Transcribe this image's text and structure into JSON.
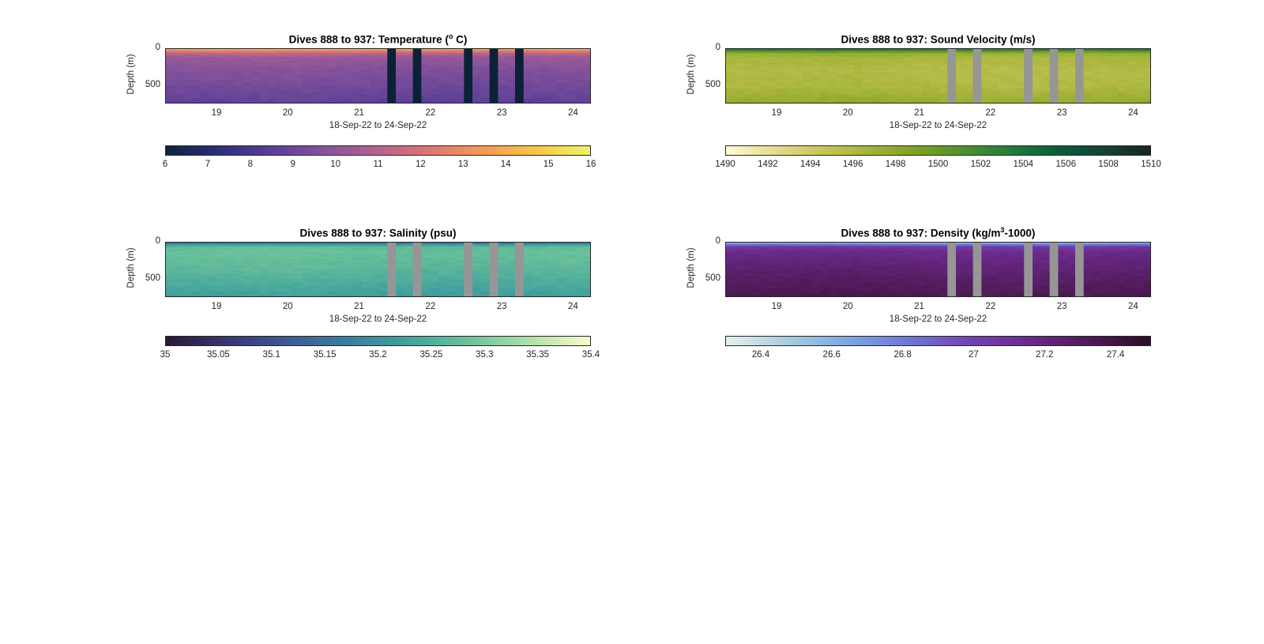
{
  "figure": {
    "panels": [
      {
        "title": "Dives 888 to 937: Temperature (",
        "title_sup": "o",
        "title_after": " C)",
        "ylabel": "Depth (m)",
        "xlabel": "18-Sep-22 to 24-Sep-22",
        "yticks": [
          "0",
          "500"
        ],
        "xticks": [
          "19",
          "20",
          "21",
          "22",
          "23",
          "24"
        ],
        "cbar_ticks": [
          "6",
          "7",
          "8",
          "9",
          "10",
          "11",
          "12",
          "13",
          "14",
          "15",
          "16"
        ],
        "colormap": [
          "#0f2437",
          "#2c2f7a",
          "#5a3f96",
          "#86539b",
          "#b4638e",
          "#dd7773",
          "#f39b55",
          "#f7c64a",
          "#ecf56b"
        ],
        "gap_color": "#0b2236"
      },
      {
        "title": "Dives 888 to 937: Sound Velocity (m/s)",
        "title_sup": "",
        "title_after": "",
        "ylabel": "Depth (m)",
        "xlabel": "18-Sep-22 to 24-Sep-22",
        "yticks": [
          "0",
          "500"
        ],
        "xticks": [
          "19",
          "20",
          "21",
          "22",
          "23",
          "24"
        ],
        "cbar_ticks": [
          "1490",
          "1492",
          "1494",
          "1496",
          "1498",
          "1500",
          "1502",
          "1504",
          "1506",
          "1508",
          "1510"
        ],
        "colormap": [
          "#fefbd5",
          "#e7dc94",
          "#c8c65c",
          "#a5b43a",
          "#7fa125",
          "#529030",
          "#257c3b",
          "#0b5e3a",
          "#164235",
          "#1a2420"
        ],
        "gap_color": "#969696"
      },
      {
        "title": "Dives 888 to 937: Salinity (psu)",
        "title_sup": "",
        "title_after": "",
        "ylabel": "Depth (m)",
        "xlabel": "18-Sep-22 to 24-Sep-22",
        "yticks": [
          "0",
          "500"
        ],
        "xticks": [
          "19",
          "20",
          "21",
          "22",
          "23",
          "24"
        ],
        "cbar_ticks": [
          "35",
          "35.05",
          "35.1",
          "35.15",
          "35.2",
          "35.25",
          "35.3",
          "35.35",
          "35.4"
        ],
        "colormap": [
          "#2a1931",
          "#3a3573",
          "#3d5a93",
          "#3a7e9c",
          "#42a29d",
          "#6cc29a",
          "#aee0a8",
          "#fcf9cf"
        ],
        "gap_color": "#969696"
      },
      {
        "title": "Dives 888 to 937: Density (kg/m",
        "title_sup": "3",
        "title_after": "-1000)",
        "ylabel": "Depth (m)",
        "xlabel": "18-Sep-22 to 24-Sep-22",
        "yticks": [
          "0",
          "500"
        ],
        "xticks": [
          "19",
          "20",
          "21",
          "22",
          "23",
          "24"
        ],
        "cbar_ticks": [
          "26.4",
          "26.6",
          "26.8",
          "27",
          "27.2",
          "27.4"
        ],
        "colormap": [
          "#e6f0f0",
          "#a9cde0",
          "#7ea6e0",
          "#6e78d6",
          "#7244b4",
          "#6b2a8a",
          "#4e1a55",
          "#2c0d27"
        ],
        "gap_color": "#969696"
      }
    ]
  },
  "chart_data": [
    {
      "type": "heatmap",
      "title": "Dives 888 to 937: Temperature (o C)",
      "xlabel": "18-Sep-22 to 24-Sep-22",
      "ylabel": "Depth (m)",
      "xlim": [
        18.28,
        24.25
      ],
      "ylim": [
        750,
        0
      ],
      "xticks": [
        19,
        20,
        21,
        22,
        23,
        24
      ],
      "yticks": [
        0,
        500
      ],
      "clim": [
        6,
        16
      ],
      "colorbar": "horizontal-below",
      "profile": {
        "depths": [
          0,
          30,
          60,
          120,
          300,
          500,
          750
        ],
        "values": [
          14.0,
          12.5,
          11.2,
          10.2,
          9.6,
          9.2,
          8.6
        ]
      },
      "data_gaps_x": [
        [
          21.4,
          21.52
        ],
        [
          21.76,
          21.88
        ],
        [
          22.48,
          22.6
        ],
        [
          22.84,
          22.96
        ],
        [
          23.2,
          23.32
        ]
      ]
    },
    {
      "type": "heatmap",
      "title": "Dives 888 to 937: Sound Velocity (m/s)",
      "xlabel": "18-Sep-22 to 24-Sep-22",
      "ylabel": "Depth (m)",
      "xlim": [
        18.28,
        24.25
      ],
      "ylim": [
        750,
        0
      ],
      "xticks": [
        19,
        20,
        21,
        22,
        23,
        24
      ],
      "yticks": [
        0,
        500
      ],
      "clim": [
        1490,
        1510
      ],
      "colorbar": "horizontal-below",
      "profile": {
        "depths": [
          0,
          30,
          60,
          120,
          300,
          500,
          750
        ],
        "values": [
          1504.5,
          1501.0,
          1497.5,
          1496.3,
          1495.8,
          1496.0,
          1497.8
        ]
      },
      "data_gaps_x": [
        [
          21.4,
          21.52
        ],
        [
          21.76,
          21.88
        ],
        [
          22.48,
          22.6
        ],
        [
          22.84,
          22.96
        ],
        [
          23.2,
          23.32
        ]
      ]
    },
    {
      "type": "heatmap",
      "title": "Dives 888 to 937: Salinity (psu)",
      "xlabel": "18-Sep-22 to 24-Sep-22",
      "ylabel": "Depth (m)",
      "xlim": [
        18.28,
        24.25
      ],
      "ylim": [
        750,
        0
      ],
      "xticks": [
        19,
        20,
        21,
        22,
        23,
        24
      ],
      "yticks": [
        0,
        500
      ],
      "clim": [
        35,
        35.4
      ],
      "colorbar": "horizontal-below",
      "profile": {
        "depths": [
          0,
          30,
          60,
          120,
          300,
          500,
          750
        ],
        "values": [
          35.14,
          35.22,
          35.27,
          35.28,
          35.27,
          35.25,
          35.22
        ]
      },
      "data_gaps_x": [
        [
          21.4,
          21.52
        ],
        [
          21.76,
          21.88
        ],
        [
          22.48,
          22.6
        ],
        [
          22.84,
          22.96
        ],
        [
          23.2,
          23.32
        ]
      ]
    },
    {
      "type": "heatmap",
      "title": "Dives 888 to 937: Density (kg/m3-1000)",
      "xlabel": "18-Sep-22 to 24-Sep-22",
      "ylabel": "Depth (m)",
      "xlim": [
        18.28,
        24.25
      ],
      "ylim": [
        750,
        0
      ],
      "xticks": [
        19,
        20,
        21,
        22,
        23,
        24
      ],
      "yticks": [
        0,
        500
      ],
      "clim": [
        26.3,
        27.5
      ],
      "colorbar": "horizontal-below",
      "profile": {
        "depths": [
          0,
          30,
          60,
          120,
          300,
          500,
          750
        ],
        "values": [
          26.55,
          26.85,
          27.05,
          27.15,
          27.22,
          27.28,
          27.35
        ]
      },
      "data_gaps_x": [
        [
          21.4,
          21.52
        ],
        [
          21.76,
          21.88
        ],
        [
          22.48,
          22.6
        ],
        [
          22.84,
          22.96
        ],
        [
          23.2,
          23.32
        ]
      ]
    }
  ]
}
